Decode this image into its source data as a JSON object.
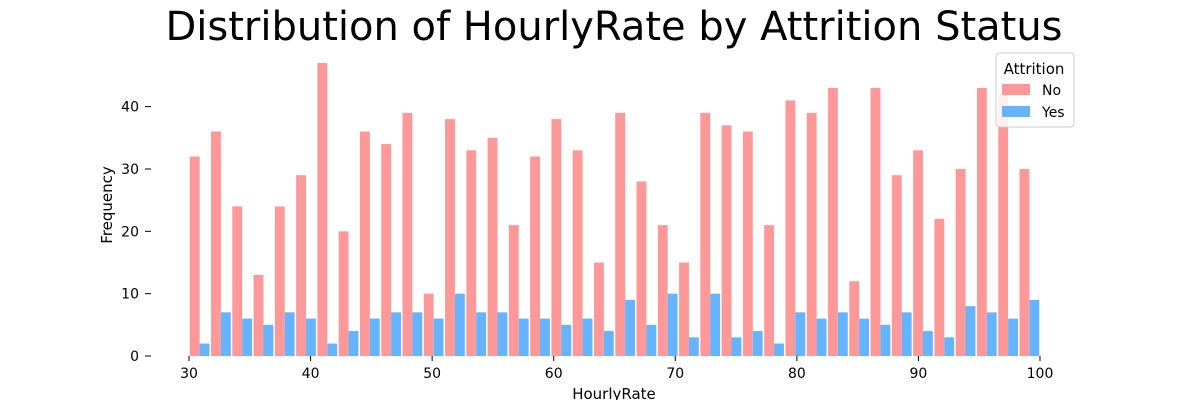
{
  "chart_data": {
    "type": "bar",
    "title": "Distribution of HourlyRate by Attrition Status",
    "xlabel": "HourlyRate",
    "ylabel": "Frequency",
    "xlim": [
      30,
      100
    ],
    "ylim": [
      0,
      47
    ],
    "x_ticks": [
      30,
      40,
      50,
      60,
      70,
      80,
      90,
      100
    ],
    "y_ticks": [
      0,
      10,
      20,
      30,
      40
    ],
    "grid": false,
    "legend": {
      "title": "Attrition",
      "placement": "top-right"
    },
    "bin_starts": [
      30,
      31.75,
      33.5,
      35.25,
      37,
      38.75,
      40.5,
      42.25,
      44,
      45.75,
      47.5,
      49.25,
      51,
      52.75,
      54.5,
      56.25,
      58,
      59.75,
      61.5,
      63.25,
      65,
      66.75,
      68.5,
      70.25,
      72,
      73.75,
      75.5,
      77.25,
      79,
      80.75,
      82.5,
      84.25,
      86,
      87.75,
      89.5,
      91.25,
      93,
      94.75,
      96.5,
      98.25
    ],
    "bin_width": 1.75,
    "series": [
      {
        "name": "No",
        "color": "#ff9999",
        "values": [
          32,
          36,
          24,
          13,
          24,
          29,
          47,
          20,
          36,
          34,
          39,
          10,
          38,
          33,
          35,
          21,
          32,
          38,
          33,
          15,
          39,
          28,
          21,
          15,
          39,
          37,
          36,
          21,
          41,
          39,
          43,
          12,
          43,
          29,
          33,
          22,
          30,
          43,
          42,
          30
        ]
      },
      {
        "name": "Yes",
        "color": "#66b3ff",
        "values": [
          2,
          7,
          6,
          5,
          7,
          6,
          2,
          4,
          6,
          7,
          7,
          6,
          10,
          7,
          7,
          6,
          6,
          5,
          6,
          4,
          9,
          5,
          10,
          3,
          10,
          3,
          4,
          2,
          7,
          6,
          7,
          6,
          5,
          7,
          4,
          3,
          8,
          7,
          6,
          9
        ]
      }
    ]
  }
}
